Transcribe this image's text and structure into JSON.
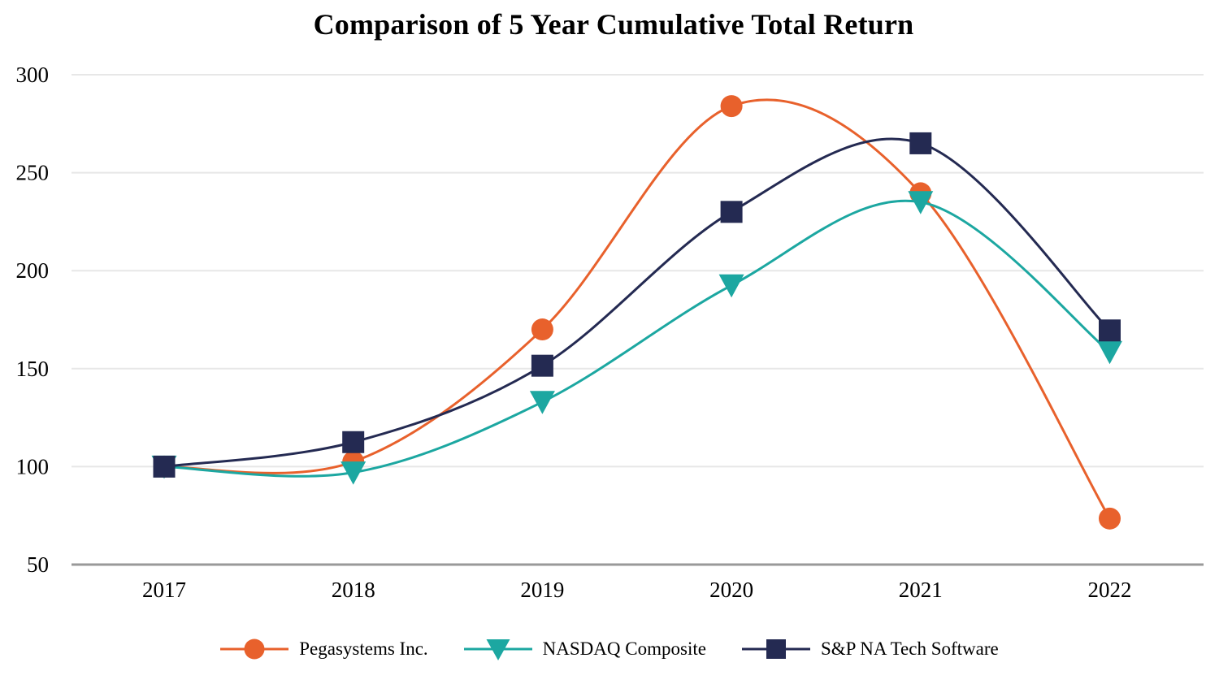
{
  "chart_data": {
    "type": "line",
    "title": "Comparison of 5 Year Cumulative Total Return",
    "categories": [
      "2017",
      "2018",
      "2019",
      "2020",
      "2021",
      "2022"
    ],
    "series": [
      {
        "name": "Pegasystems Inc.",
        "marker": "circle",
        "color": "#E8612C",
        "values": [
          100,
          102.5,
          170,
          284,
          239.5,
          73.5
        ]
      },
      {
        "name": "NASDAQ Composite",
        "marker": "triangle-down",
        "color": "#1CA7A1",
        "values": [
          100,
          97,
          133,
          192.5,
          235,
          158.5
        ]
      },
      {
        "name": "S&P NA Tech Software",
        "marker": "square",
        "color": "#242A52",
        "values": [
          100,
          112.5,
          151.5,
          230,
          265,
          169.5
        ]
      }
    ],
    "ylim": [
      50,
      300
    ],
    "yticks": [
      300,
      250,
      200,
      150,
      100,
      50
    ],
    "grid": "horizontal",
    "line_style": "smooth",
    "legend_position": "bottom",
    "colors": {
      "gridline": "#E7E7E7",
      "axis_line": "#999999",
      "text": "#000000",
      "background": "#FFFFFF"
    }
  }
}
